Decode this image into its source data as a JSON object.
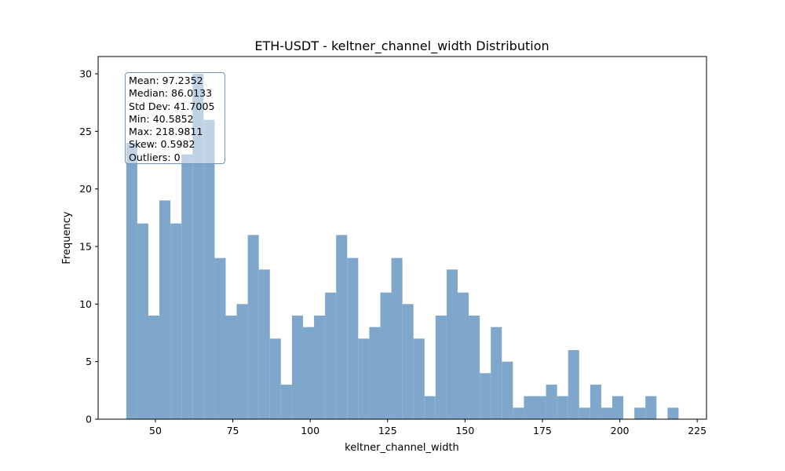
{
  "chart_data": {
    "type": "bar",
    "title": "ETH-USDT - keltner_channel_width Distribution",
    "xlabel": "keltner_channel_width",
    "ylabel": "Frequency",
    "xlim": [
      31.5,
      228.0
    ],
    "ylim": [
      0,
      31.5
    ],
    "x_ticks": [
      50,
      75,
      100,
      125,
      150,
      175,
      200,
      225
    ],
    "y_ticks": [
      0,
      5,
      10,
      15,
      20,
      25,
      30
    ],
    "bin_start": 40.5852,
    "bin_end": 218.9811,
    "bin_count": 50,
    "values": [
      24,
      17,
      9,
      19,
      17,
      23,
      30,
      26,
      14,
      9,
      10,
      16,
      13,
      7,
      3,
      9,
      8,
      9,
      11,
      16,
      14,
      7,
      8,
      11,
      14,
      10,
      7,
      2,
      9,
      13,
      11,
      9,
      4,
      8,
      5,
      1,
      2,
      2,
      3,
      2,
      6,
      1,
      3,
      1,
      2,
      0,
      1,
      2,
      0,
      1
    ],
    "bar_color": "#7ea7cb",
    "grid": false,
    "legend": "none"
  },
  "stats": [
    "Mean: 97.2352",
    "Median: 86.0133",
    "Std Dev: 41.7005",
    "Min: 40.5852",
    "Max: 218.9811",
    "Skew: 0.5982",
    "Outliers: 0"
  ]
}
